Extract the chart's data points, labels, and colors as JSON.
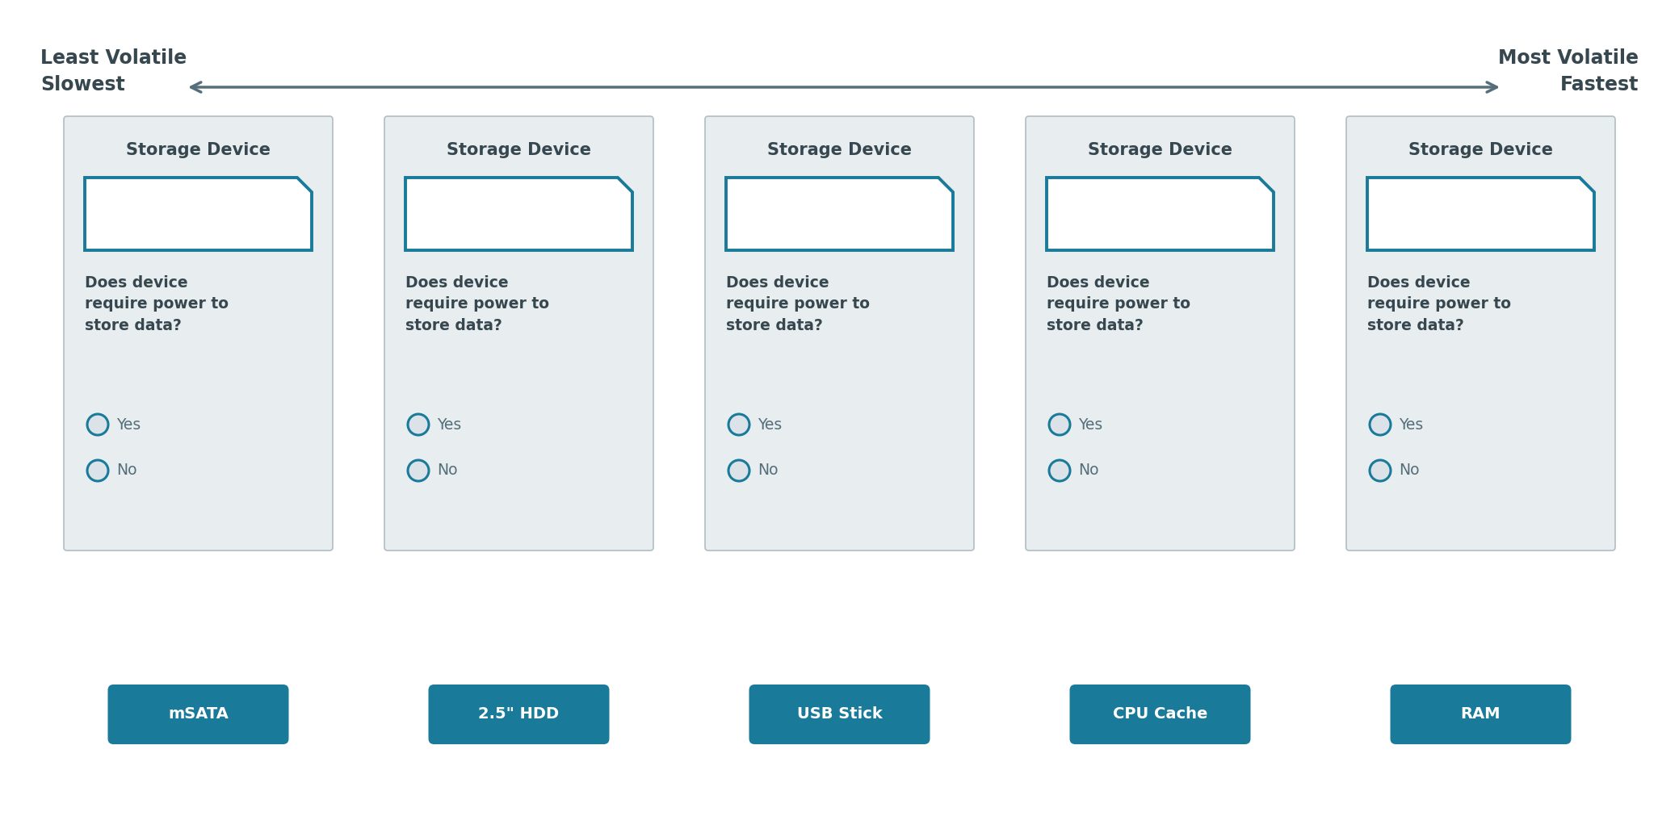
{
  "bg_color": "#ffffff",
  "arrow_color": "#546e7a",
  "left_label_line1": "Least Volatile",
  "left_label_line2": "Slowest",
  "right_label_line1": "Most Volatile",
  "right_label_line2": "Fastest",
  "label_color": "#37474f",
  "card_bg": "#e8edf0",
  "card_border": "#b0bec5",
  "card_title": "Storage Device",
  "card_title_color": "#37474f",
  "device_rect_color": "#1a7a9a",
  "device_rect_fill": "#ffffff",
  "question_text": "Does device\nrequire power to\nstore data?",
  "question_color": "#37474f",
  "radio_color": "#1a7a9a",
  "radio_fill": "#dce3e8",
  "yes_no_color": "#546e7a",
  "devices": [
    "mSATA",
    "2.5\" HDD",
    "USB Stick",
    "CPU Cache",
    "RAM"
  ],
  "button_color": "#1a7a9a",
  "button_text_color": "#ffffff",
  "fig_w": 20.79,
  "fig_h": 10.27,
  "dpi": 100
}
